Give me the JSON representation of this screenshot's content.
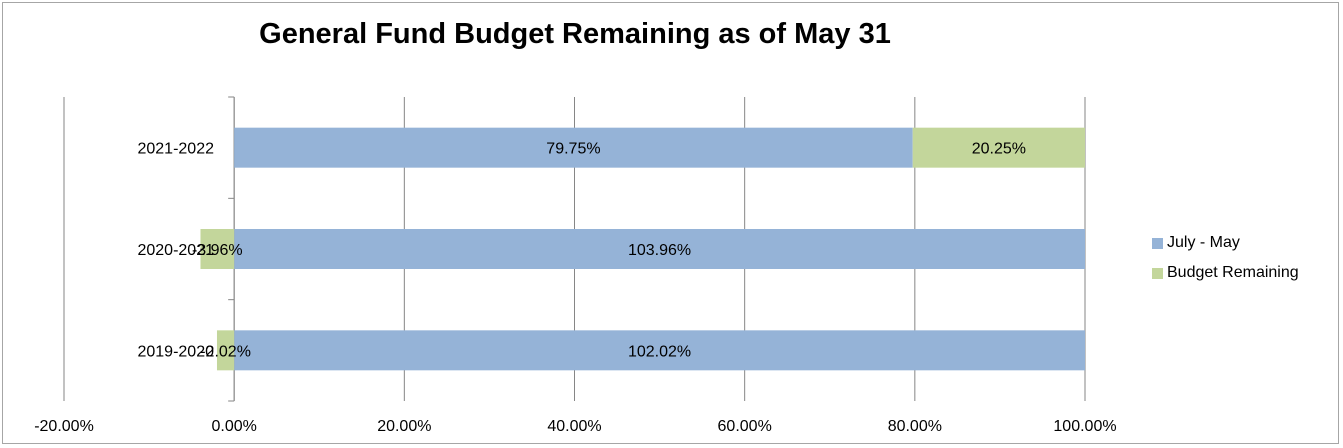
{
  "chart_data": {
    "type": "bar",
    "orientation": "horizontal",
    "stacked": true,
    "title": "General Fund Budget Remaining as of May 31",
    "categories": [
      "2019-2020",
      "2020-2021",
      "2021-2022"
    ],
    "series": [
      {
        "name": "July - May",
        "color": "#95b3d7",
        "values": [
          102.02,
          103.96,
          79.75
        ],
        "labels": [
          "102.02%",
          "103.96%",
          "79.75%"
        ]
      },
      {
        "name": "Budget Remaining",
        "color": "#c3d69b",
        "values": [
          -2.02,
          -3.96,
          20.25
        ],
        "labels": [
          "-2.02%",
          "-3.96%",
          "20.25%"
        ]
      }
    ],
    "xlim": [
      -20,
      100
    ],
    "xticks": [
      "-20.00%",
      "0.00%",
      "20.00%",
      "40.00%",
      "60.00%",
      "80.00%",
      "100.00%"
    ],
    "grid": "vertical",
    "legend_position": "right"
  }
}
